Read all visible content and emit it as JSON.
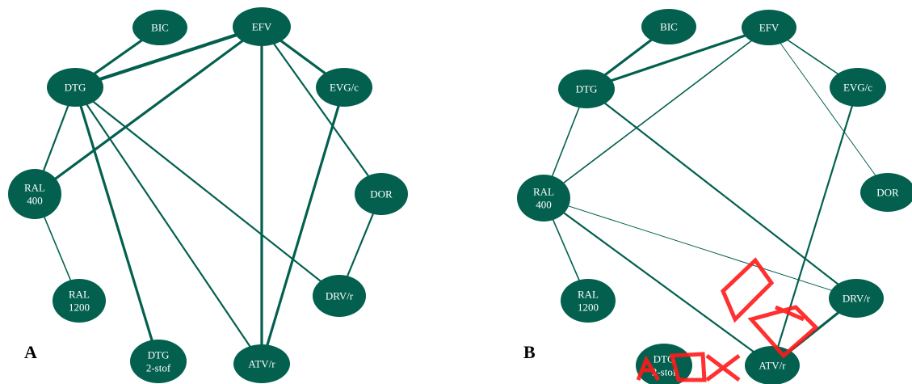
{
  "colors": {
    "node_fill": "#03604f",
    "edge": "#03604f",
    "node_text": "#ffffff",
    "watermark": "#ff1a1a"
  },
  "panels": [
    {
      "id": "A",
      "label": "A",
      "nodes": [
        {
          "id": "BIC",
          "lines": [
            "BIC"
          ]
        },
        {
          "id": "EFV",
          "lines": [
            "EFV"
          ]
        },
        {
          "id": "DTG",
          "lines": [
            "DTG"
          ]
        },
        {
          "id": "EVG/c",
          "lines": [
            "EVG/c"
          ]
        },
        {
          "id": "RAL400",
          "lines": [
            "RAL",
            "400"
          ]
        },
        {
          "id": "DOR",
          "lines": [
            "DOR"
          ]
        },
        {
          "id": "RAL1200",
          "lines": [
            "RAL",
            "1200"
          ]
        },
        {
          "id": "DRV/r",
          "lines": [
            "DRV/r"
          ]
        },
        {
          "id": "DTG2stof",
          "lines": [
            "DTG",
            "2-stof"
          ]
        },
        {
          "id": "ATV/r",
          "lines": [
            "ATV/r"
          ]
        }
      ],
      "edges": [
        {
          "from": "BIC",
          "to": "DTG",
          "weight": 3
        },
        {
          "from": "EFV",
          "to": "DTG",
          "weight": 4
        },
        {
          "from": "EFV",
          "to": "EVG/c",
          "weight": 3
        },
        {
          "from": "EFV",
          "to": "RAL400",
          "weight": 3
        },
        {
          "from": "EFV",
          "to": "ATV/r",
          "weight": 3
        },
        {
          "from": "EFV",
          "to": "DOR",
          "weight": 2
        },
        {
          "from": "DTG",
          "to": "RAL400",
          "weight": 2
        },
        {
          "from": "DTG",
          "to": "DTG2stof",
          "weight": 3
        },
        {
          "from": "DTG",
          "to": "ATV/r",
          "weight": 2
        },
        {
          "from": "DTG",
          "to": "DRV/r",
          "weight": 2
        },
        {
          "from": "EVG/c",
          "to": "ATV/r",
          "weight": 3
        },
        {
          "from": "RAL400",
          "to": "RAL1200",
          "weight": 1.5
        },
        {
          "from": "DOR",
          "to": "DRV/r",
          "weight": 2
        }
      ]
    },
    {
      "id": "B",
      "label": "B",
      "nodes": [
        {
          "id": "BIC",
          "lines": [
            "BIC"
          ]
        },
        {
          "id": "EFV",
          "lines": [
            "EFV"
          ]
        },
        {
          "id": "DTG",
          "lines": [
            "DTG"
          ]
        },
        {
          "id": "EVG/c",
          "lines": [
            "EVG/c"
          ]
        },
        {
          "id": "RAL400",
          "lines": [
            "RAL",
            "400"
          ]
        },
        {
          "id": "DOR",
          "lines": [
            "DOR"
          ]
        },
        {
          "id": "RAL1200",
          "lines": [
            "RAL",
            "1200"
          ]
        },
        {
          "id": "DRV/r",
          "lines": [
            "DRV/r"
          ]
        },
        {
          "id": "DTG2stof",
          "lines": [
            "DTG",
            "2-stof"
          ]
        },
        {
          "id": "ATV/r",
          "lines": [
            "ATV/r"
          ]
        }
      ],
      "edges": [
        {
          "from": "BIC",
          "to": "DTG",
          "weight": 3
        },
        {
          "from": "EFV",
          "to": "DTG",
          "weight": 3
        },
        {
          "from": "EFV",
          "to": "EVG/c",
          "weight": 1.5
        },
        {
          "from": "EFV",
          "to": "RAL400",
          "weight": 1.5
        },
        {
          "from": "EFV",
          "to": "DOR",
          "weight": 0.8
        },
        {
          "from": "DTG",
          "to": "RAL400",
          "weight": 1.5
        },
        {
          "from": "DTG",
          "to": "DRV/r",
          "weight": 2
        },
        {
          "from": "EVG/c",
          "to": "ATV/r",
          "weight": 2
        },
        {
          "from": "RAL400",
          "to": "RAL1200",
          "weight": 1.5
        },
        {
          "from": "RAL400",
          "to": "DRV/r",
          "weight": 0.8
        },
        {
          "from": "RAL400",
          "to": "ATV/r",
          "weight": 2
        },
        {
          "from": "DRV/r",
          "to": "ATV/r",
          "weight": 3
        }
      ]
    }
  ]
}
